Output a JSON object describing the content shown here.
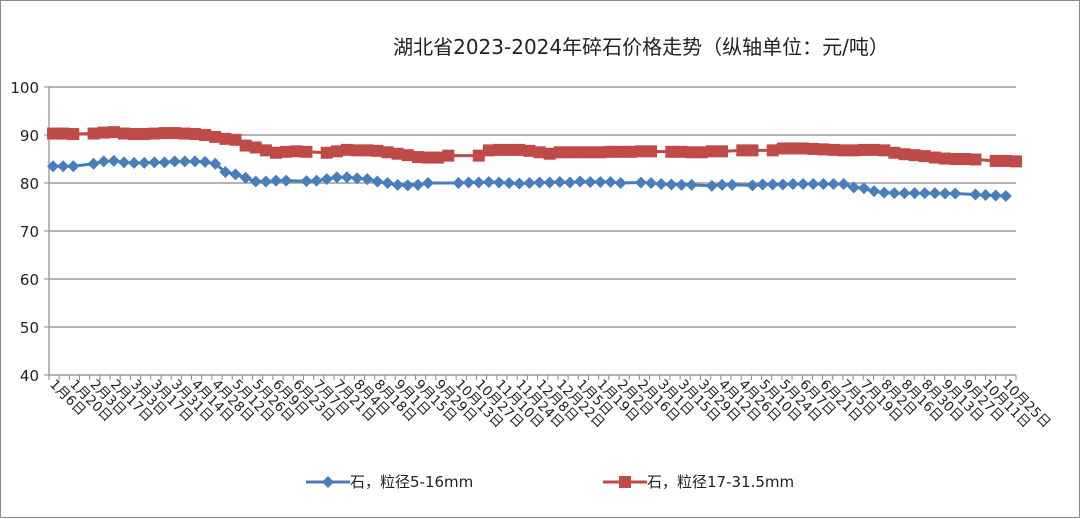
{
  "chart_data": {
    "type": "line",
    "title": "湖北省2023-2024年碎石价格走势（纵轴单位：元/吨）",
    "ylabel": "元/吨",
    "ylim": [
      40,
      100
    ],
    "yticks": [
      40,
      50,
      60,
      70,
      80,
      90,
      100
    ],
    "grid": true,
    "legend_position": "bottom",
    "x_labels": [
      "1月6日",
      "1月20日",
      "2月3日",
      "2月17日",
      "3月3日",
      "3月17日",
      "3月31日",
      "4月14日",
      "4月28日",
      "5月12日",
      "5月26日",
      "6月9日",
      "6月23日",
      "7月7日",
      "7月21日",
      "8月4日",
      "8月18日",
      "9月1日",
      "9月15日",
      "9月29日",
      "10月13日",
      "10月27日",
      "11月10日",
      "11月24日",
      "12月8日",
      "12月22日",
      "1月5日",
      "1月19日",
      "2月2日",
      "2月16日",
      "3月1日",
      "3月15日",
      "3月29日",
      "4月12日",
      "4月26日",
      "5月10日",
      "5月24日",
      "6月7日",
      "6月21日",
      "7月5日",
      "7月19日",
      "8月2日",
      "8月16日",
      "8月30日",
      "9月13日",
      "9月27日",
      "10月11日",
      "10月25日"
    ],
    "series": [
      {
        "name": "石，粒径5-16mm",
        "color": "#4a7ebb",
        "marker": "diamond",
        "values": [
          83.5,
          83.5,
          83.5,
          null,
          84,
          84.5,
          84.6,
          84.3,
          84.2,
          84.2,
          84.3,
          84.3,
          84.5,
          84.5,
          84.5,
          84.4,
          84.0,
          82.3,
          81.8,
          81.1,
          80.3,
          80.3,
          80.5,
          80.5,
          null,
          80.4,
          80.5,
          80.8,
          81.2,
          81.2,
          81.0,
          80.8,
          80.3,
          80.0,
          79.6,
          79.5,
          79.6,
          80.0,
          null,
          null,
          80.0,
          80.1,
          80.1,
          80.2,
          80.1,
          80.0,
          79.9,
          80.0,
          80.1,
          80.1,
          80.2,
          80.1,
          80.3,
          80.2,
          80.2,
          80.2,
          80.0,
          null,
          80.1,
          80.0,
          79.8,
          79.7,
          79.6,
          79.6,
          null,
          79.4,
          79.6,
          79.6,
          null,
          79.5,
          79.7,
          79.7,
          79.7,
          79.8,
          79.8,
          79.8,
          79.8,
          79.8,
          79.8,
          79.1,
          78.9,
          78.3,
          78.0,
          77.9,
          77.9,
          77.9,
          77.9,
          77.9,
          77.8,
          77.8,
          null,
          77.6,
          77.5,
          77.4,
          77.3
        ]
      },
      {
        "name": "石，粒径17-31.5mm",
        "color": "#be4b48",
        "marker": "square",
        "values": [
          90.3,
          90.3,
          90.2,
          null,
          90.3,
          90.5,
          90.6,
          90.3,
          90.2,
          90.2,
          90.3,
          90.4,
          90.4,
          90.3,
          90.2,
          90.0,
          89.6,
          89.2,
          89.0,
          87.8,
          87.4,
          86.8,
          86.3,
          86.5,
          86.6,
          86.5,
          null,
          86.3,
          86.6,
          86.9,
          86.8,
          86.8,
          86.7,
          86.4,
          86.1,
          85.8,
          85.4,
          85.3,
          85.3,
          85.7,
          null,
          null,
          85.7,
          86.8,
          86.9,
          86.9,
          86.9,
          86.7,
          86.4,
          86.1,
          86.4,
          86.4,
          86.4,
          86.4,
          86.4,
          86.5,
          86.5,
          86.5,
          86.6,
          86.6,
          null,
          86.5,
          86.5,
          86.4,
          86.4,
          86.6,
          86.6,
          null,
          86.8,
          86.8,
          null,
          86.8,
          87.2,
          87.2,
          87.2,
          87.1,
          87.0,
          86.9,
          86.8,
          86.8,
          86.9,
          86.9,
          86.8,
          86.3,
          86.0,
          85.8,
          85.6,
          85.3,
          85.1,
          85.0,
          85.0,
          84.9,
          null,
          84.6,
          84.6,
          84.5
        ]
      }
    ]
  }
}
